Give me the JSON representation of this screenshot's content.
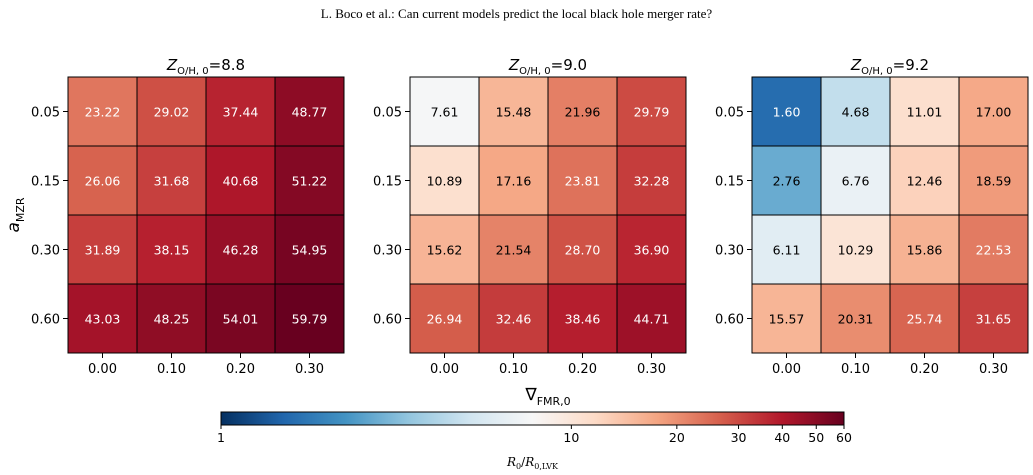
{
  "page_header": "L. Boco et al.: Can current models predict the local black hole merger rate?",
  "chart_data": {
    "type": "heatmap",
    "xlabel": "∇FMR,0",
    "ylabel": "aMZR",
    "x_categories": [
      "0.00",
      "0.10",
      "0.20",
      "0.30"
    ],
    "y_categories": [
      "0.05",
      "0.15",
      "0.30",
      "0.60"
    ],
    "panels": [
      {
        "title_sym": "Z",
        "title_sub": "O/H, 0",
        "title_val": "=8.8",
        "values": [
          [
            23.22,
            29.02,
            37.44,
            48.77
          ],
          [
            26.06,
            31.68,
            40.68,
            51.22
          ],
          [
            31.89,
            38.15,
            46.28,
            54.95
          ],
          [
            43.03,
            48.25,
            54.01,
            59.79
          ]
        ]
      },
      {
        "title_sym": "Z",
        "title_sub": "O/H, 0",
        "title_val": "=9.0",
        "values": [
          [
            7.61,
            15.48,
            21.96,
            29.79
          ],
          [
            10.89,
            17.16,
            23.81,
            32.28
          ],
          [
            15.62,
            21.54,
            28.7,
            36.9
          ],
          [
            26.94,
            32.46,
            38.46,
            44.71
          ]
        ]
      },
      {
        "title_sym": "Z",
        "title_sub": "O/H, 0",
        "title_val": "=9.2",
        "values": [
          [
            1.6,
            4.68,
            11.01,
            17.0
          ],
          [
            2.76,
            6.76,
            12.46,
            18.59
          ],
          [
            6.11,
            10.29,
            15.86,
            22.53
          ],
          [
            15.57,
            20.31,
            25.74,
            31.65
          ]
        ]
      }
    ],
    "colorbar": {
      "label": "R0/R0,LVK",
      "scale": "log",
      "range": [
        1,
        60
      ],
      "ticks": [
        "1",
        "10",
        "20",
        "30",
        "40",
        "50",
        "60"
      ],
      "tick_values": [
        1,
        10,
        20,
        30,
        40,
        50,
        60
      ],
      "colormap": "RdBu_r",
      "colormap_stops": [
        "#053061",
        "#2166ac",
        "#4393c3",
        "#92c5de",
        "#d1e5f0",
        "#f7f7f7",
        "#fddbc7",
        "#f4a582",
        "#d6604d",
        "#b2182b",
        "#67001f"
      ]
    }
  }
}
